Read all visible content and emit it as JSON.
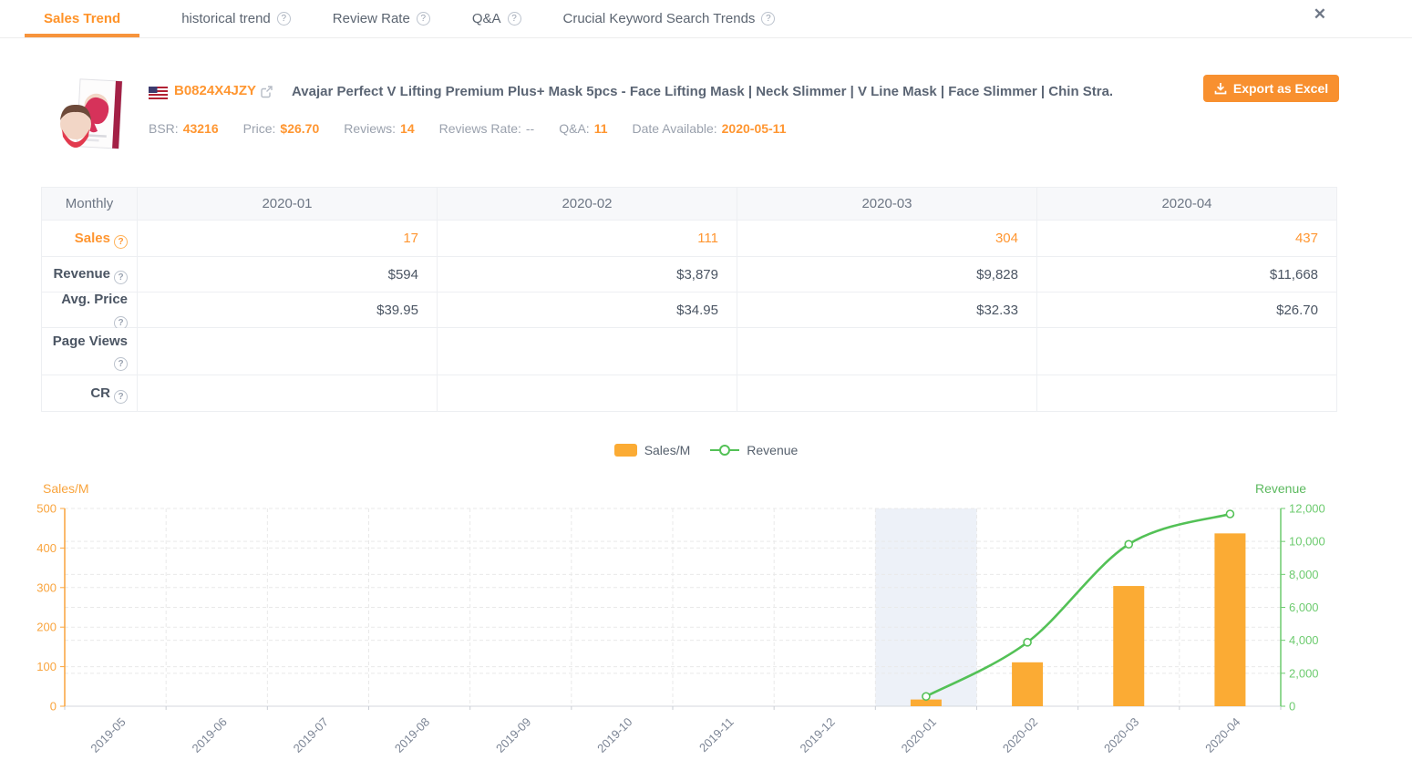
{
  "icons": {
    "close": "✕",
    "help": "?"
  },
  "tabs": {
    "items": [
      {
        "label": "Sales Trend",
        "active": true,
        "has_help": false
      },
      {
        "label": "historical trend",
        "active": false,
        "has_help": true
      },
      {
        "label": "Review Rate",
        "active": false,
        "has_help": true
      },
      {
        "label": "Q&A",
        "active": false,
        "has_help": true
      },
      {
        "label": "Crucial Keyword Search Trends",
        "active": false,
        "has_help": true
      }
    ]
  },
  "product": {
    "marketplace": "US",
    "asin": "B0824X4JZY",
    "title": "Avajar Perfect V Lifting Premium Plus+ Mask 5pcs - Face Lifting Mask | Neck Slimmer | V Line Mask | Face Slimmer | Chin Stra...",
    "stats": [
      {
        "label": "BSR:",
        "value": "43216"
      },
      {
        "label": "Price:",
        "value": "$26.70"
      },
      {
        "label": "Reviews:",
        "value": "14"
      },
      {
        "label": "Reviews Rate:",
        "value": "--"
      },
      {
        "label": "Q&A:",
        "value": "11"
      },
      {
        "label": "Date Available:",
        "value": "2020-05-11"
      }
    ],
    "export_label": "Export as Excel"
  },
  "table": {
    "corner": "Monthly",
    "columns": [
      "2020-01",
      "2020-02",
      "2020-03",
      "2020-04"
    ],
    "rows": [
      {
        "label": "Sales",
        "values": [
          "17",
          "111",
          "304",
          "437"
        ]
      },
      {
        "label": "Revenue",
        "values": [
          "$594",
          "$3,879",
          "$9,828",
          "$11,668"
        ]
      },
      {
        "label": "Avg. Price",
        "values": [
          "$39.95",
          "$34.95",
          "$32.33",
          "$26.70"
        ]
      },
      {
        "label": "Page Views",
        "values": [
          "",
          "",
          "",
          ""
        ]
      },
      {
        "label": "CR",
        "values": [
          "",
          "",
          "",
          ""
        ]
      }
    ]
  },
  "legend": {
    "items": [
      {
        "label": "Sales/M",
        "color": "#fbab34",
        "type": "bar"
      },
      {
        "label": "Revenue",
        "color": "#53c156",
        "type": "line"
      }
    ]
  },
  "chart_data": {
    "type": "bar",
    "title": "",
    "categories": [
      "2019-05",
      "2019-06",
      "2019-07",
      "2019-08",
      "2019-09",
      "2019-10",
      "2019-11",
      "2019-12",
      "2020-01",
      "2020-02",
      "2020-03",
      "2020-04"
    ],
    "series": [
      {
        "name": "Sales/M",
        "type": "bar",
        "axis": "left",
        "color": "#fbab34",
        "values": [
          null,
          null,
          null,
          null,
          null,
          null,
          null,
          null,
          17,
          111,
          304,
          437
        ]
      },
      {
        "name": "Revenue",
        "type": "line",
        "axis": "right",
        "color": "#53c156",
        "values": [
          null,
          null,
          null,
          null,
          null,
          null,
          null,
          null,
          594,
          3879,
          9828,
          11668
        ]
      }
    ],
    "left_axis": {
      "title": "Sales/M",
      "min": 0,
      "max": 500,
      "ticks": [
        0,
        100,
        200,
        300,
        400,
        500
      ],
      "color": "#f9a43d"
    },
    "right_axis": {
      "title": "Revenue",
      "min": 0,
      "max": 12000,
      "ticks": [
        0,
        2000,
        4000,
        6000,
        8000,
        10000,
        12000
      ],
      "color": "#6dcb6f",
      "title_color": "#5bb95e"
    },
    "highlight_category": "2020-01",
    "grid": {
      "dashed": true,
      "color": "#e9e9e9"
    },
    "legend_position": "top-center",
    "xlabel_rotation": -45
  }
}
